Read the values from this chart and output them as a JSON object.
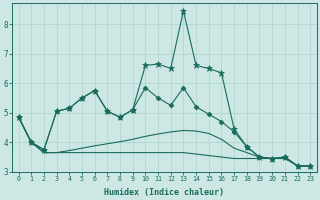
{
  "xlabel": "Humidex (Indice chaleur)",
  "background_color": "#cde8e4",
  "grid_color": "#b0d8d0",
  "line_color": "#1a6b5a",
  "xlim": [
    -0.5,
    23.5
  ],
  "ylim": [
    3.0,
    8.7
  ],
  "yticks": [
    3,
    4,
    5,
    6,
    7,
    8
  ],
  "xticks": [
    0,
    1,
    2,
    3,
    4,
    5,
    6,
    7,
    8,
    9,
    10,
    11,
    12,
    13,
    14,
    15,
    16,
    17,
    18,
    19,
    20,
    21,
    22,
    23
  ],
  "lines": [
    {
      "x": [
        0,
        1,
        2,
        3,
        4,
        5,
        6,
        7,
        8,
        9,
        10,
        11,
        12,
        13,
        14,
        15,
        16,
        17,
        18,
        19,
        20,
        21,
        22,
        23
      ],
      "y": [
        4.85,
        4.0,
        3.75,
        5.05,
        5.15,
        5.5,
        5.75,
        5.05,
        4.85,
        5.1,
        6.6,
        6.65,
        6.5,
        8.45,
        6.6,
        6.5,
        6.35,
        4.45,
        3.85,
        3.5,
        3.45,
        3.5,
        3.2,
        3.2
      ],
      "marker": "*",
      "marker_size": 4.5
    },
    {
      "x": [
        0,
        1,
        2,
        3,
        4,
        5,
        6,
        7,
        8,
        9,
        10,
        11,
        12,
        13,
        14,
        15,
        16,
        17,
        18,
        19,
        20,
        21,
        22,
        23
      ],
      "y": [
        4.85,
        4.0,
        3.75,
        5.05,
        5.15,
        5.5,
        5.75,
        5.05,
        4.85,
        5.1,
        5.85,
        5.5,
        5.25,
        5.85,
        5.2,
        4.95,
        4.7,
        4.35,
        3.85,
        3.5,
        3.45,
        3.5,
        3.2,
        3.2
      ],
      "marker": "D",
      "marker_size": 2.5
    },
    {
      "x": [
        0,
        1,
        2,
        3,
        4,
        5,
        6,
        7,
        8,
        9,
        10,
        11,
        12,
        13,
        14,
        15,
        16,
        17,
        18,
        19,
        20,
        21,
        22,
        23
      ],
      "y": [
        4.85,
        4.0,
        3.65,
        3.65,
        3.72,
        3.8,
        3.88,
        3.95,
        4.02,
        4.1,
        4.2,
        4.28,
        4.35,
        4.4,
        4.38,
        4.3,
        4.1,
        3.8,
        3.65,
        3.5,
        3.45,
        3.5,
        3.2,
        3.2
      ],
      "marker": null,
      "marker_size": 0
    },
    {
      "x": [
        0,
        1,
        2,
        3,
        4,
        5,
        6,
        7,
        8,
        9,
        10,
        11,
        12,
        13,
        14,
        15,
        16,
        17,
        18,
        19,
        20,
        21,
        22,
        23
      ],
      "y": [
        4.85,
        4.0,
        3.65,
        3.65,
        3.65,
        3.65,
        3.65,
        3.65,
        3.65,
        3.65,
        3.65,
        3.65,
        3.65,
        3.65,
        3.6,
        3.55,
        3.5,
        3.45,
        3.45,
        3.45,
        3.45,
        3.45,
        3.2,
        3.2
      ],
      "marker": null,
      "marker_size": 0
    }
  ]
}
